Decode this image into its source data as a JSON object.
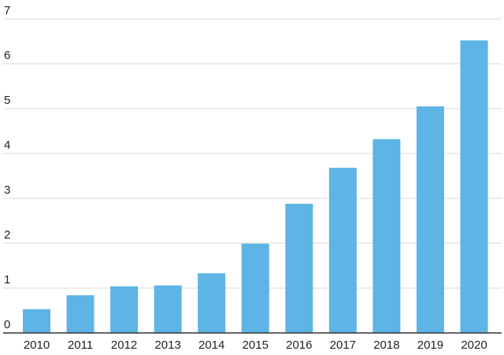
{
  "chart_data": {
    "type": "bar",
    "title": "",
    "xlabel": "",
    "ylabel": "",
    "categories": [
      "2010",
      "2011",
      "2012",
      "2013",
      "2014",
      "2015",
      "2016",
      "2017",
      "2018",
      "2019",
      "2020"
    ],
    "values": [
      0.53,
      0.84,
      1.04,
      1.06,
      1.33,
      1.99,
      2.88,
      3.68,
      4.32,
      5.05,
      6.52
    ],
    "ylim": [
      0,
      7
    ],
    "yticks": [
      "0",
      "1",
      "2",
      "3",
      "4",
      "5",
      "6",
      "7"
    ],
    "grid": true,
    "legend": "none"
  },
  "colors": {
    "bar": "#5db4e5",
    "grid": "#d9d9d9",
    "axis": "#333333",
    "text": "#222222"
  }
}
